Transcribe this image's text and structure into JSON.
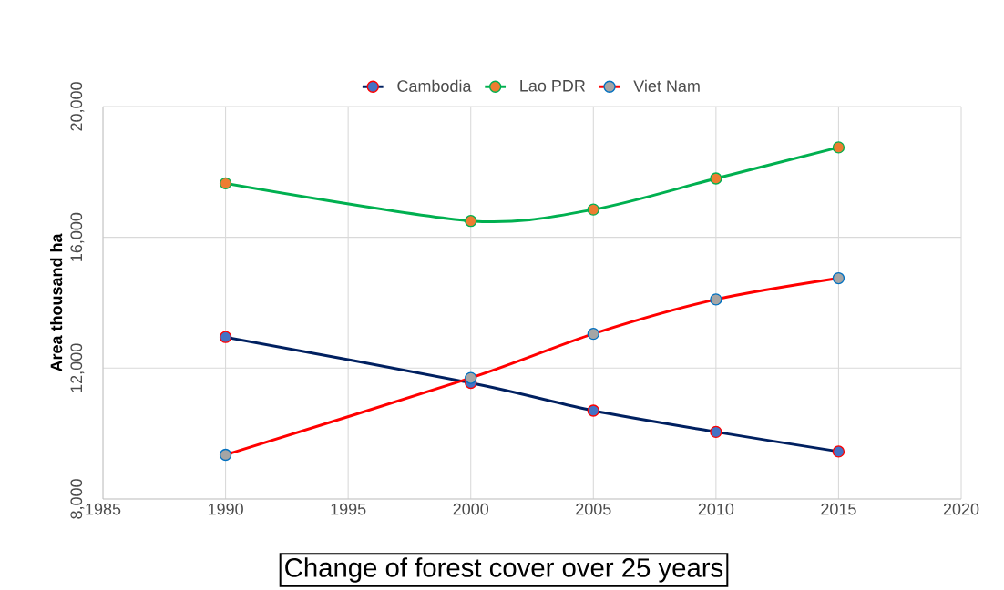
{
  "chart_data": {
    "type": "line",
    "title": "Change of forest cover over 25 years",
    "ylabel": "Area thousand ha",
    "x": [
      1990,
      2000,
      2005,
      2010,
      2015
    ],
    "series": [
      {
        "name": "Cambodia",
        "color": "#002060",
        "values": [
          12950,
          11550,
          10700,
          10050,
          9450
        ]
      },
      {
        "name": "Lao PDR",
        "color": "#00b050",
        "values": [
          17650,
          16500,
          16850,
          17800,
          18750
        ]
      },
      {
        "name": "Viet Nam",
        "color": "#ff0000",
        "values": [
          9350,
          11700,
          13050,
          14100,
          14750
        ]
      }
    ],
    "xlim": [
      1985,
      2020
    ],
    "xticks": [
      1985,
      1990,
      1995,
      2000,
      2005,
      2010,
      2015,
      2020
    ],
    "ylim": [
      8000,
      20000
    ],
    "yticks": [
      {
        "value": 8000,
        "label": "8,000"
      },
      {
        "value": 12000,
        "label": "12,000"
      },
      {
        "value": 16000,
        "label": "16,000"
      },
      {
        "value": 20000,
        "label": "20,000"
      }
    ],
    "grid": true,
    "legend": "top",
    "marker": "circle"
  }
}
